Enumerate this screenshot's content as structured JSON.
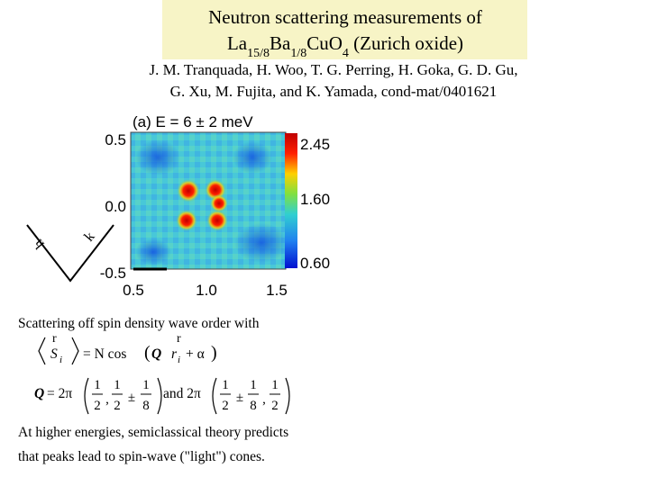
{
  "header": {
    "title_line_1": "Neutron scattering measurements of",
    "title_line_2": {
      "p1": "La",
      "s1": "15/8",
      "p2": "Ba",
      "s2": "1/8",
      "p3": "CuO",
      "s3": "4",
      "p4": " (Zurich oxide)"
    },
    "authors_line_1": "J. M. Tranquada, H. Woo, T. G. Perring, H. Goka, G. D. Gu,",
    "authors_line_2": "G. Xu, M. Fujita, and K. Yamada, cond-mat/0401621"
  },
  "figure": {
    "panel_label": "(a) E = 6 ± 2 meV",
    "y_ticks": [
      "0.5",
      "0.0",
      "-0.5"
    ],
    "x_ticks": [
      "0.5",
      "1.0",
      "1.5"
    ],
    "colorbar_ticks": [
      "2.45",
      "1.60",
      "0.60"
    ],
    "direction_labels": [
      "h",
      "k"
    ]
  },
  "text": {
    "intro": "Scattering off spin density wave order with",
    "formula_1": {
      "vec_1": "r",
      "S": "S",
      "S_sub": "i",
      "eq": "= N cos",
      "Q": "Q",
      "vec_2": "r",
      "r": "r",
      "r_sub": "i",
      "alpha": "+ α"
    },
    "formula_2": {
      "lhs": "Q",
      "eq": "= 2π",
      "v1": {
        "n1": "1",
        "d1": "2",
        "sep": ",",
        "n2": "1",
        "d2": "2",
        "pm": "±",
        "n3": "1",
        "d3": "8"
      },
      "and": "and 2π",
      "v2": {
        "n1": "1",
        "d1": "2",
        "pm": "±",
        "n2": "1",
        "d2": "8",
        "sep": ",",
        "n3": "1",
        "d3": "2"
      }
    },
    "conclusion_line_1": "At higher energies, semiclassical theory predicts",
    "conclusion_line_2": "that peaks lead to spin-wave (\"light\") cones."
  }
}
